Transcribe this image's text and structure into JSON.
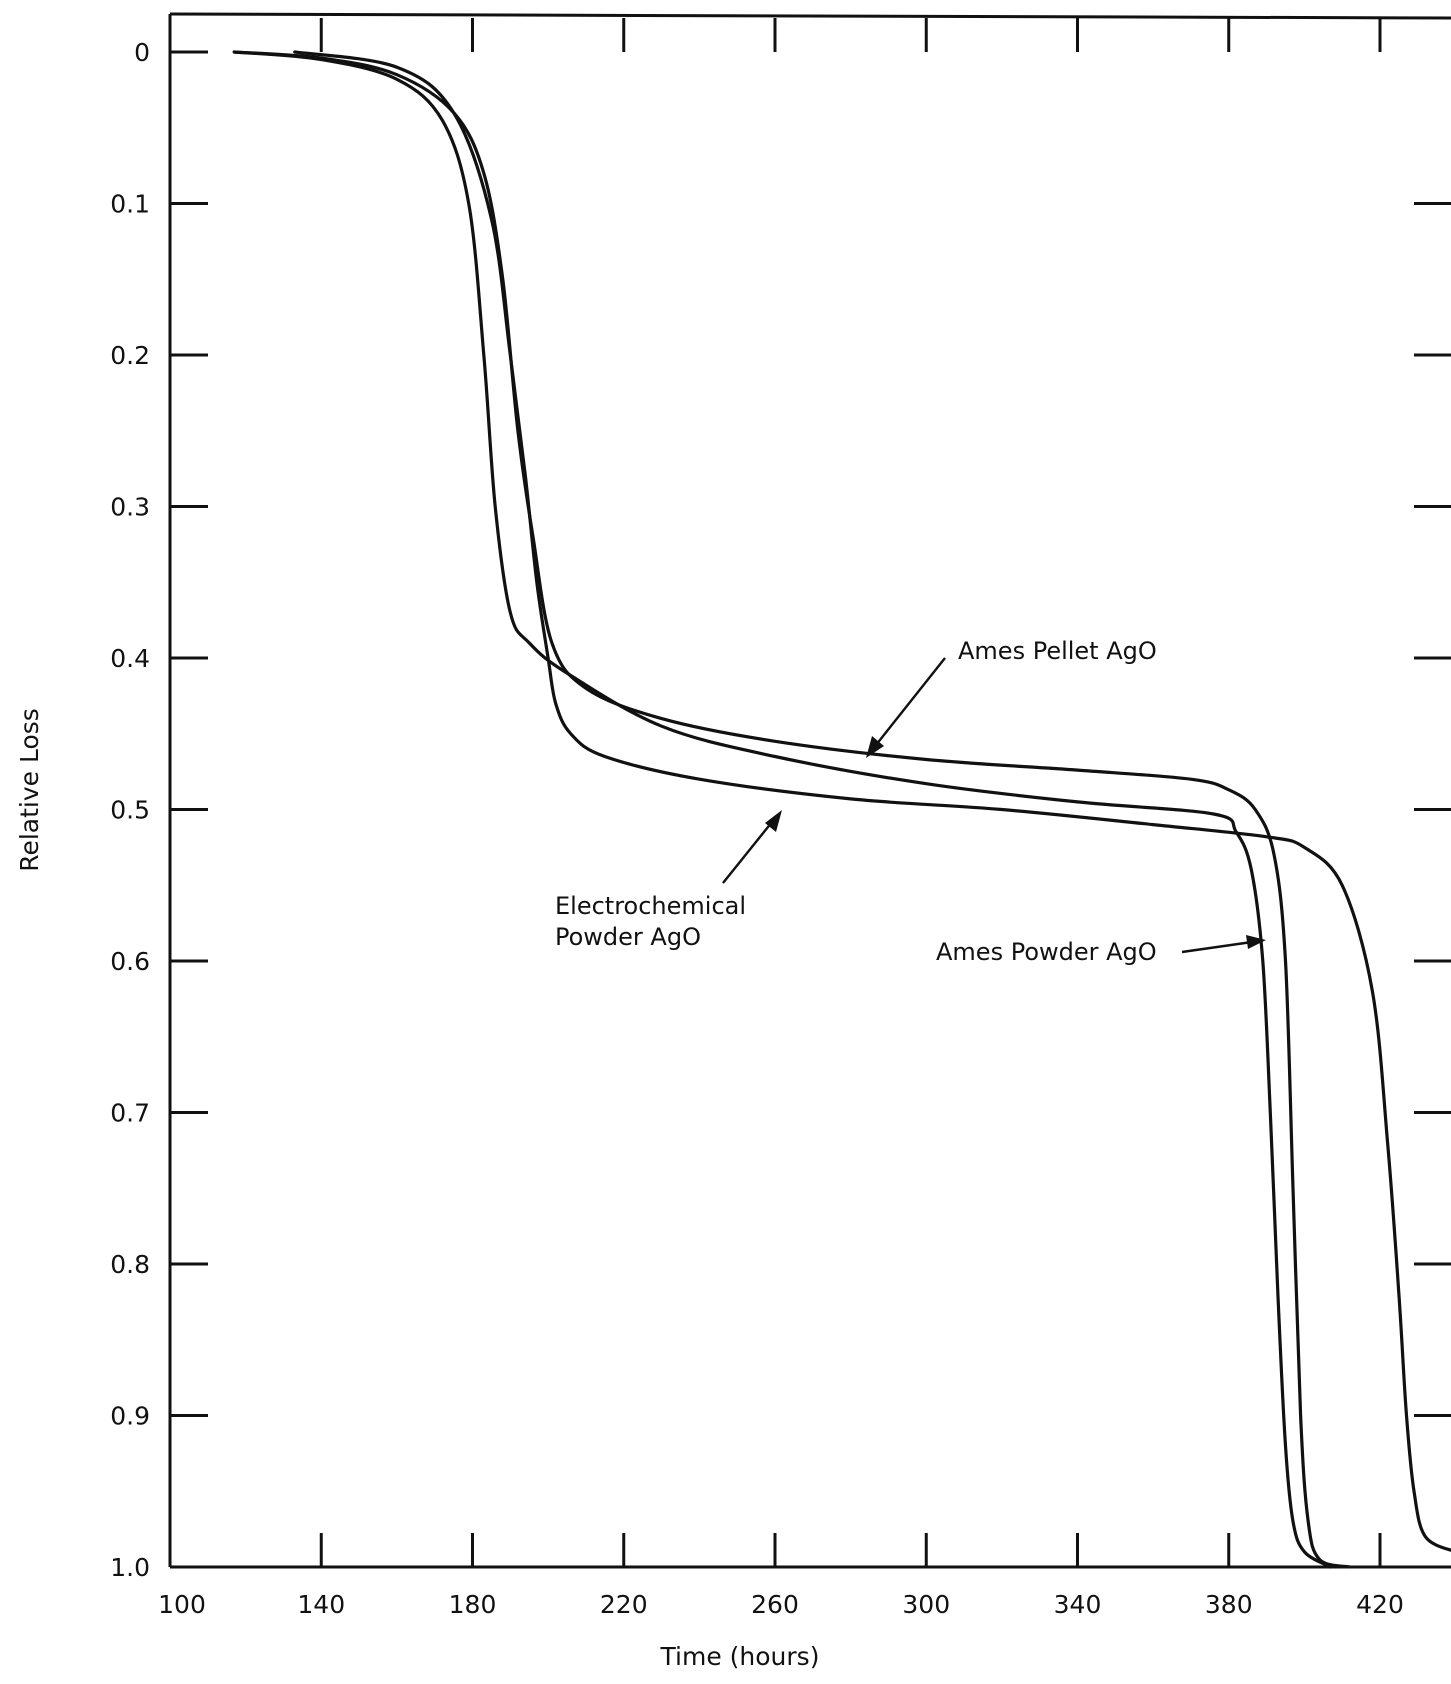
{
  "chart_data": {
    "type": "line",
    "title": "",
    "xlabel": "Time (hours)",
    "ylabel": "Relative Loss",
    "xlim": [
      100,
      440
    ],
    "ylim": [
      1.0,
      0
    ],
    "y_axis_inverted": true,
    "grid": false,
    "x_ticks": [
      "100",
      "140",
      "180",
      "220",
      "260",
      "300",
      "340",
      "380",
      "420"
    ],
    "y_ticks": [
      "0",
      "0.1",
      "0.2",
      "0.3",
      "0.4",
      "0.5",
      "0.6",
      "0.7",
      "0.8",
      "0.9",
      "1.0"
    ],
    "x_tick_values": [
      100,
      140,
      180,
      220,
      260,
      300,
      340,
      380,
      420
    ],
    "y_tick_values": [
      0,
      0.1,
      0.2,
      0.3,
      0.4,
      0.5,
      0.6,
      0.7,
      0.8,
      0.9,
      1.0
    ],
    "series": [
      {
        "name": "Ames Pellet AgO",
        "points": [
          [
            117,
            0
          ],
          [
            140,
            0.004
          ],
          [
            160,
            0.015
          ],
          [
            175,
            0.04
          ],
          [
            183,
            0.08
          ],
          [
            188,
            0.15
          ],
          [
            192,
            0.25
          ],
          [
            196,
            0.32
          ],
          [
            201,
            0.39
          ],
          [
            210,
            0.42
          ],
          [
            230,
            0.44
          ],
          [
            260,
            0.455
          ],
          [
            300,
            0.467
          ],
          [
            340,
            0.474
          ],
          [
            370,
            0.48
          ],
          [
            380,
            0.487
          ],
          [
            387,
            0.5
          ],
          [
            392,
            0.53
          ],
          [
            395,
            0.6
          ],
          [
            397,
            0.75
          ],
          [
            399,
            0.9
          ],
          [
            401,
            0.97
          ],
          [
            404,
            0.995
          ],
          [
            412,
            1.0
          ]
        ]
      },
      {
        "name": "Electrochemical Powder AgO",
        "points": [
          [
            117,
            0
          ],
          [
            140,
            0.005
          ],
          [
            160,
            0.018
          ],
          [
            172,
            0.045
          ],
          [
            179,
            0.1
          ],
          [
            183,
            0.2
          ],
          [
            186,
            0.3
          ],
          [
            190,
            0.37
          ],
          [
            195,
            0.39
          ],
          [
            205,
            0.41
          ],
          [
            230,
            0.445
          ],
          [
            260,
            0.465
          ],
          [
            300,
            0.483
          ],
          [
            340,
            0.495
          ],
          [
            376,
            0.503
          ],
          [
            382,
            0.515
          ],
          [
            386,
            0.54
          ],
          [
            389,
            0.6
          ],
          [
            391,
            0.7
          ],
          [
            393,
            0.82
          ],
          [
            395,
            0.92
          ],
          [
            397,
            0.97
          ],
          [
            400,
            0.99
          ],
          [
            407,
            1.0
          ]
        ]
      },
      {
        "name": "Ames Powder AgO",
        "points": [
          [
            133,
            0
          ],
          [
            160,
            0.01
          ],
          [
            175,
            0.04
          ],
          [
            185,
            0.11
          ],
          [
            190,
            0.2
          ],
          [
            194,
            0.28
          ],
          [
            197,
            0.35
          ],
          [
            200,
            0.4
          ],
          [
            202,
            0.43
          ],
          [
            206,
            0.45
          ],
          [
            215,
            0.465
          ],
          [
            240,
            0.48
          ],
          [
            280,
            0.493
          ],
          [
            320,
            0.5
          ],
          [
            360,
            0.51
          ],
          [
            390,
            0.518
          ],
          [
            400,
            0.525
          ],
          [
            410,
            0.55
          ],
          [
            418,
            0.62
          ],
          [
            422,
            0.72
          ],
          [
            425,
            0.82
          ],
          [
            427,
            0.9
          ],
          [
            429,
            0.95
          ],
          [
            432,
            0.98
          ],
          [
            440,
            0.99
          ]
        ]
      }
    ],
    "annotations": [
      {
        "text": "Ames Pellet AgO"
      },
      {
        "text_lines": [
          "Electrochemical",
          "Powder AgO"
        ]
      },
      {
        "text": "Ames Powder AgO"
      }
    ]
  }
}
